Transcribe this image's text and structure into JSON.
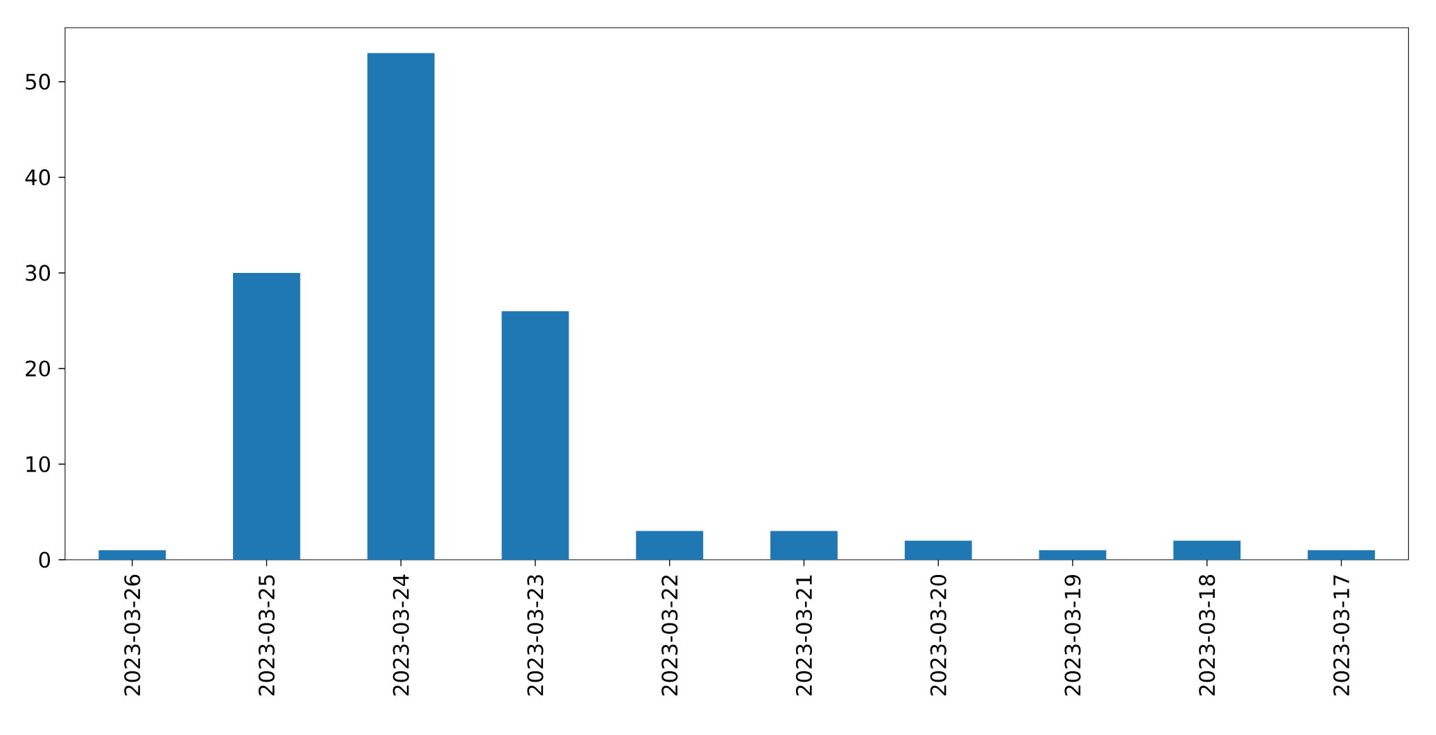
{
  "chart_data": {
    "type": "bar",
    "categories": [
      "2023-03-26",
      "2023-03-25",
      "2023-03-24",
      "2023-03-23",
      "2023-03-22",
      "2023-03-21",
      "2023-03-20",
      "2023-03-19",
      "2023-03-18",
      "2023-03-17"
    ],
    "values": [
      1,
      30,
      53,
      26,
      3,
      3,
      2,
      1,
      2,
      1
    ],
    "color": "#1f77b4",
    "ylim": [
      0,
      55.65
    ],
    "yticks": [
      0,
      10,
      20,
      30,
      40,
      50
    ]
  }
}
